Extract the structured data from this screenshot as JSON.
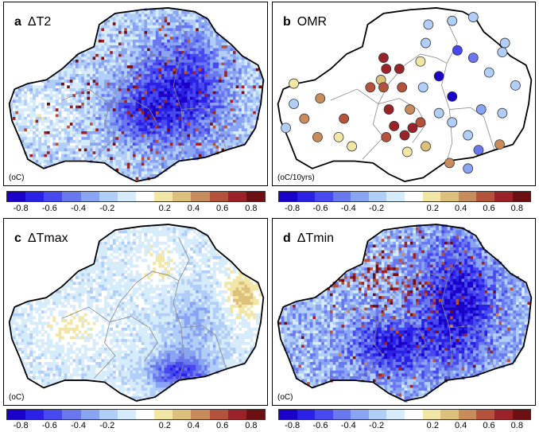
{
  "panels": [
    {
      "id": "a",
      "letter": "a",
      "title": "ΔT2",
      "unit": "(oC)",
      "type": "grid",
      "pattern": "t2"
    },
    {
      "id": "b",
      "letter": "b",
      "title": "OMR",
      "unit": "(oC/10yrs)",
      "type": "stations",
      "pattern": "omr"
    },
    {
      "id": "c",
      "letter": "c",
      "title": "ΔTmax",
      "unit": "(oC)",
      "type": "grid",
      "pattern": "tmax"
    },
    {
      "id": "d",
      "letter": "d",
      "title": "ΔTmin",
      "unit": "(oC)",
      "type": "grid",
      "pattern": "tmin"
    }
  ],
  "colorbar": {
    "ticks": [
      "-0.8",
      "-0.6",
      "-0.4",
      "-0.2",
      "0.2",
      "0.4",
      "0.6",
      "0.8"
    ],
    "range": [
      -0.9,
      0.9
    ],
    "colors": [
      "#1a00c8",
      "#2a20e6",
      "#4848f0",
      "#6a78f0",
      "#8aa4f4",
      "#b0cef8",
      "#d6ecfa",
      "#ffffff",
      "#f2e6a6",
      "#dcc07c",
      "#c88c5c",
      "#b4523c",
      "#9a2228",
      "#6e0f14"
    ]
  }
}
